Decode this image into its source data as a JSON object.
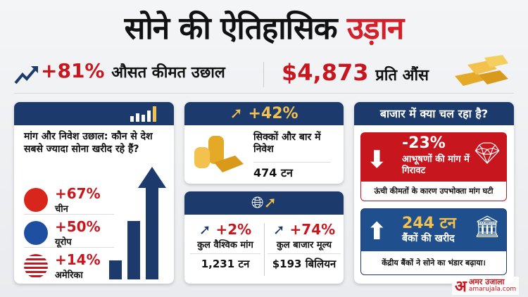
{
  "title": {
    "main": "सोने की ऐतिहासिक",
    "highlight": "उड़ान"
  },
  "headline_stats": {
    "price_change": "+81%",
    "price_change_label": "औसत कीमत उछाल",
    "price": "$4,873",
    "price_unit": "प्रति औंस"
  },
  "countries_card": {
    "heading": "मांग और निवेश उछाल: कौन से देश सबसे ज्यादा सोना खरीद रहे हैं?",
    "items": [
      {
        "value": "+67%",
        "name": "चीन",
        "icon": "china-flag"
      },
      {
        "value": "+50%",
        "name": "यूरोप",
        "icon": "europe-globe"
      },
      {
        "value": "+14%",
        "name": "अमेरिका",
        "icon": "usa-flag"
      }
    ]
  },
  "coins_card": {
    "change": "+42%",
    "label": "सिक्कों और बार में निवेश",
    "value": "474 टन"
  },
  "global_card": {
    "items": [
      {
        "change": "+2%",
        "label": "कुल वैश्विक मांग",
        "value": "1,231 टन"
      },
      {
        "change": "+74%",
        "label": "कुल बाजार मूल्य",
        "value": "$193 बिलियन"
      }
    ]
  },
  "market_card": {
    "heading": "बाजार में क्या चल रहा है?",
    "jewellery": {
      "change": "-23%",
      "label": "आभूषणों की मांग में गिरावट",
      "note": "ऊंची कीमतों के कारण उपभोक्ता मांग घटी"
    },
    "banks": {
      "value": "244 टन",
      "label": "बैंकों की खरीद",
      "note": "केंद्रीय बैंकों ने सोने का भंडार बढ़ाया।"
    }
  },
  "brand": {
    "logo": "अ",
    "name": "अमर उजाला",
    "site": "amarujala.com"
  },
  "colors": {
    "navy": "#1c3a6b",
    "red": "#c8161f",
    "gold": "#f2c14e"
  }
}
